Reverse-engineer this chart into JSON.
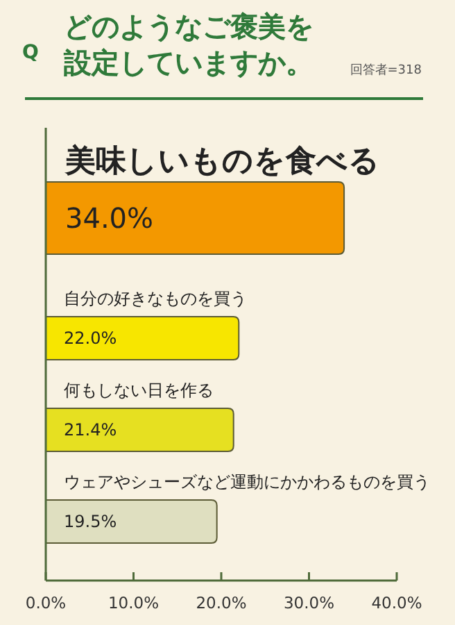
{
  "chart_data": {
    "type": "bar",
    "orientation": "horizontal",
    "title": "どのようなご褒美を設定していますか。",
    "annotations": [
      "Q",
      "回答者=318"
    ],
    "categories": [
      "美味しいものを食べる",
      "自分の好きなものを買う",
      "何もしない日を作る",
      "ウェアやシューズなど運動にかかわるものを買う"
    ],
    "values": [
      34.0,
      22.0,
      21.4,
      19.5
    ],
    "colors": [
      "#f39800",
      "#f7e600",
      "#e6e021",
      "#dfdfc0"
    ],
    "value_labels": [
      "34.0%",
      "22.0%",
      "21.4%",
      "19.5%"
    ],
    "xlim": [
      0,
      40
    ],
    "xticks": [
      {
        "value": 0,
        "label": "0.0%"
      },
      {
        "value": 10,
        "label": "10.0%"
      },
      {
        "value": 20,
        "label": "20.0%"
      },
      {
        "value": 30,
        "label": "30.0%"
      },
      {
        "value": 40,
        "label": "40.0%"
      }
    ]
  }
}
